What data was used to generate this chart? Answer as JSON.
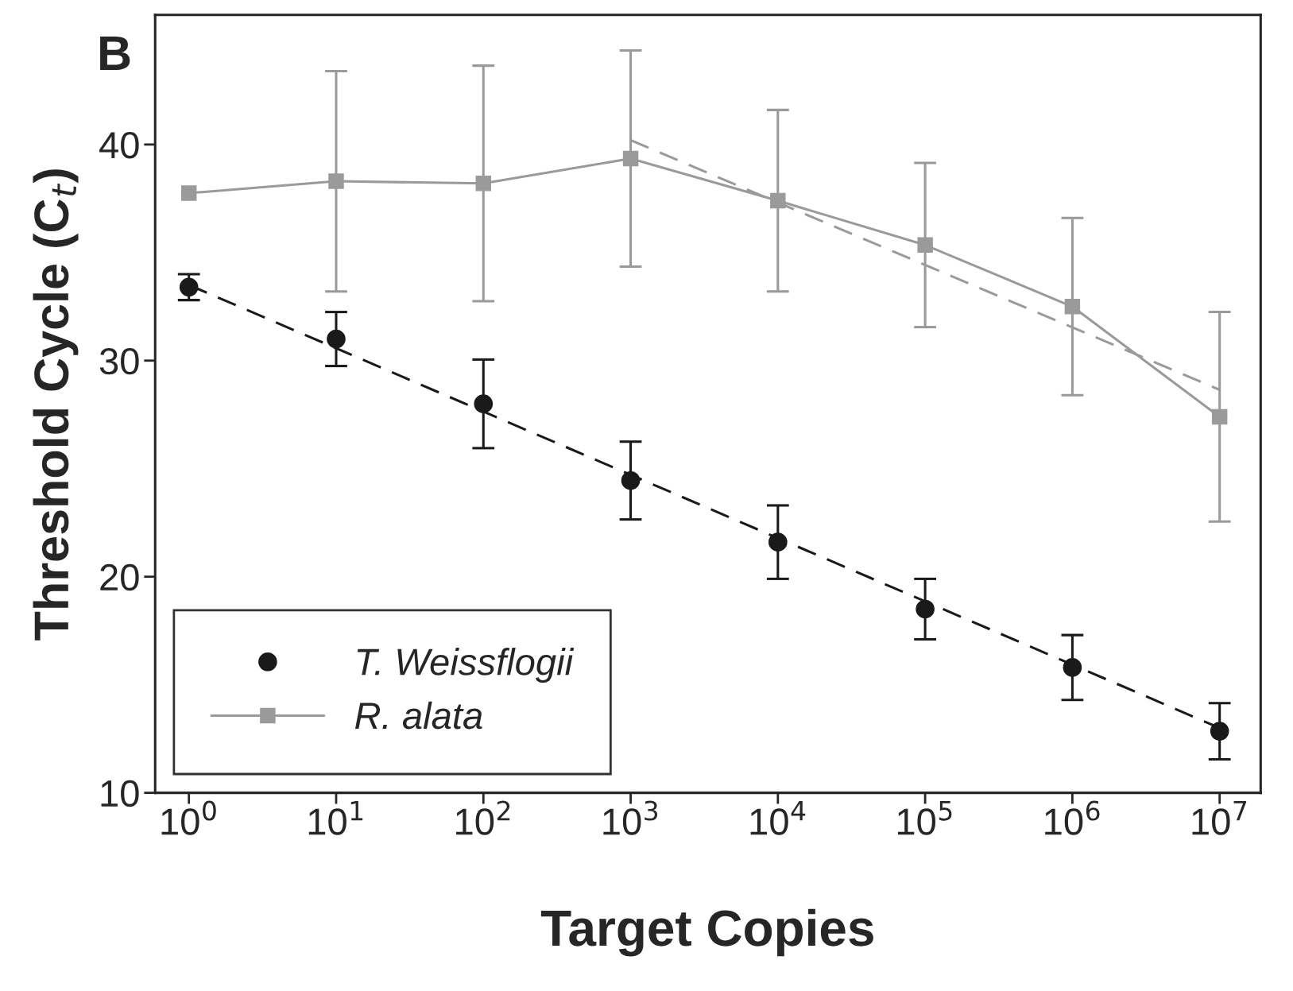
{
  "chart_data": {
    "type": "scatter",
    "xlabel": "Target Copies",
    "ylabel": "Threshold Cycle (C$_{t}$)",
    "annotations": [
      "B"
    ],
    "log": "x",
    "xlim": [
      0.59,
      19000000
    ],
    "ylim": [
      10,
      46
    ],
    "xticks": [
      {
        "value": 1,
        "label": "10$^{0}$"
      },
      {
        "value": 10,
        "label": "10$^{1}$"
      },
      {
        "value": 100,
        "label": "10$^{2}$"
      },
      {
        "value": 1000,
        "label": "10$^{3}$"
      },
      {
        "value": 10000,
        "label": "10$^{4}$"
      },
      {
        "value": 100000,
        "label": "10$^{5}$"
      },
      {
        "value": 1000000,
        "label": "10$^{6}$"
      },
      {
        "value": 10000000,
        "label": "10$^{7}$"
      }
    ],
    "yticks": [
      10,
      20,
      30,
      40
    ],
    "grid": false,
    "legend": "bottom left",
    "series": [
      {
        "name": "T. Weissflogii",
        "marker": "circle",
        "color": "#1a1a1a",
        "x": [
          1,
          10,
          100,
          1000,
          10000,
          100000,
          1000000,
          10000000
        ],
        "values": [
          33.4,
          31.0,
          28.0,
          24.45,
          21.6,
          18.5,
          15.8,
          12.85
        ],
        "errors": [
          0.6,
          1.25,
          2.05,
          1.8,
          1.7,
          1.4,
          1.5,
          1.3
        ]
      },
      {
        "name": "R. alata",
        "type": "line",
        "marker": "square",
        "line_style": "solid",
        "color": "#9a9a9a",
        "x": [
          1,
          10,
          100,
          1000,
          10000,
          100000,
          1000000,
          10000000
        ],
        "values": [
          37.75,
          38.3,
          38.2,
          39.35,
          37.4,
          35.35,
          32.5,
          27.4
        ],
        "errors": [
          null,
          5.1,
          5.45,
          5.0,
          4.2,
          3.8,
          4.1,
          4.85
        ]
      },
      {
        "type": "line",
        "marker": "none",
        "line_style": "dashed",
        "color": "#1a1a1a",
        "x": [
          1,
          10000000
        ],
        "values": [
          33.5,
          13.0
        ]
      },
      {
        "type": "line",
        "marker": "none",
        "line_style": "dashed",
        "color": "#9a9a9a",
        "x": [
          1000,
          10000000
        ],
        "values": [
          40.2,
          28.65
        ]
      }
    ]
  }
}
